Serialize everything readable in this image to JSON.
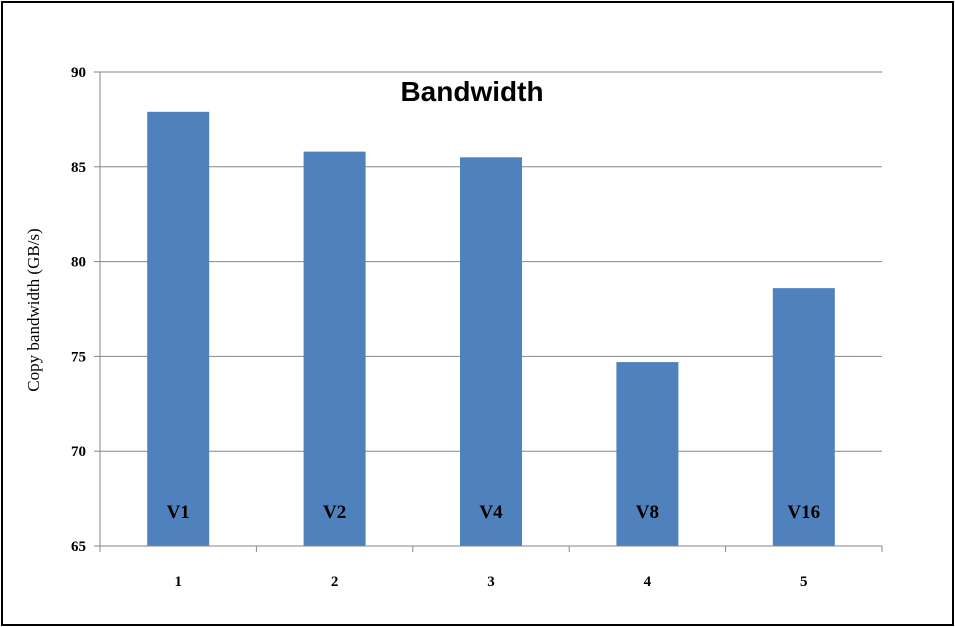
{
  "chart_data": {
    "type": "bar",
    "title": "Bandwidth",
    "xlabel": "",
    "ylabel": "Copy bandwidth   (GB/s)",
    "categories": [
      "1",
      "2",
      "3",
      "4",
      "5"
    ],
    "values": [
      87.9,
      85.8,
      85.5,
      74.7,
      78.6
    ],
    "bar_labels": [
      "V1",
      "V2",
      "V4",
      "V8",
      "V16"
    ],
    "ylim": [
      65,
      90
    ],
    "yticks": [
      65,
      70,
      75,
      80,
      85,
      90
    ],
    "grid": true,
    "legend": "none",
    "bar_color": "#4F81BD",
    "grid_color": "#868686"
  }
}
